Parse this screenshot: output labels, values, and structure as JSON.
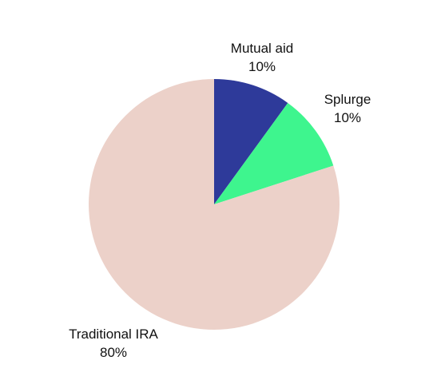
{
  "chart_data": {
    "type": "pie",
    "title": "",
    "slices": [
      {
        "label": "Mutual aid",
        "value": 10,
        "value_label": "10%",
        "color": "#2e3a9a"
      },
      {
        "label": "Splurge",
        "value": 10,
        "value_label": "10%",
        "color": "#3ef58e"
      },
      {
        "label": "Traditional IRA",
        "value": 80,
        "value_label": "80%",
        "color": "#ecd1c9"
      }
    ]
  }
}
